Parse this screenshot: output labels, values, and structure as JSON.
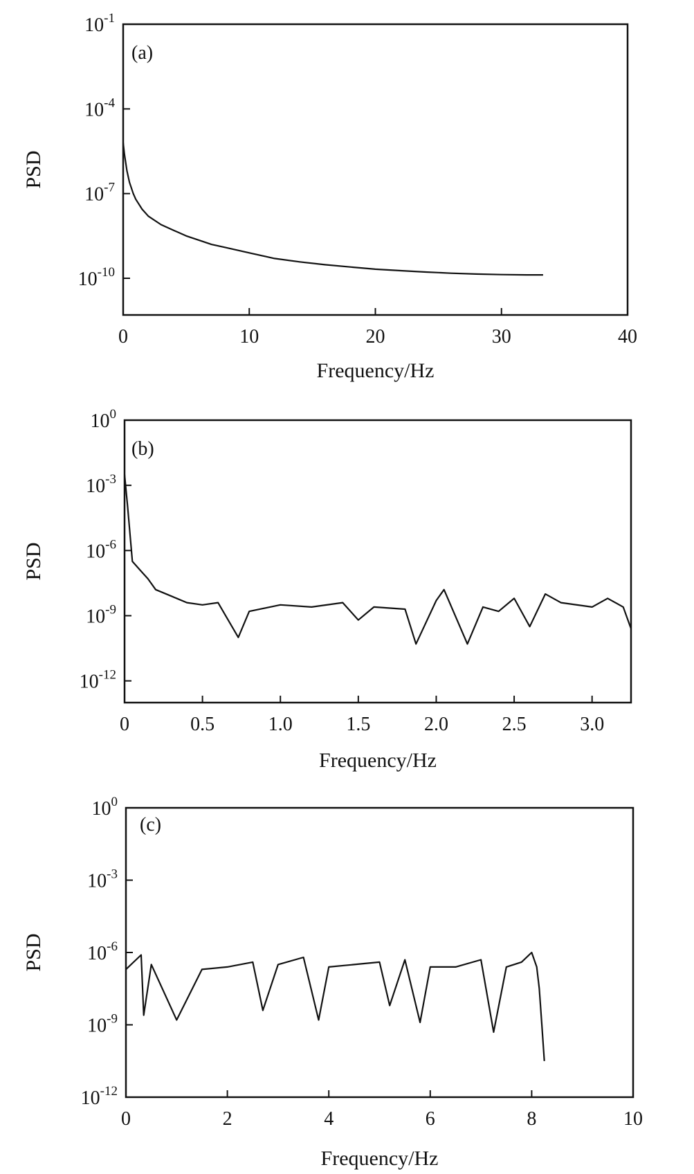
{
  "chart_data": [
    {
      "type": "line",
      "panel_label": "(a)",
      "xlabel": "Frequency/Hz",
      "ylabel": "PSD",
      "y_scale": "log",
      "xlim": [
        0,
        40
      ],
      "ylim_exp": [
        -11.3,
        -1
      ],
      "x_ticks": [
        0,
        10,
        20,
        30,
        40
      ],
      "x_tick_labels": [
        "0",
        "10",
        "20",
        "30",
        "40"
      ],
      "y_ticks_exp": [
        -10,
        -7,
        -4,
        -1
      ],
      "y_tick_labels": [
        {
          "base": "10",
          "exp": "-10"
        },
        {
          "base": "10",
          "exp": "-7"
        },
        {
          "base": "10",
          "exp": "-4"
        },
        {
          "base": "10",
          "exp": "-1"
        }
      ],
      "series": [
        {
          "x": [
            0,
            0.1,
            0.3,
            0.5,
            0.8,
            1,
            1.5,
            2,
            3,
            4,
            5,
            6,
            7,
            8,
            10,
            12,
            14,
            16,
            18,
            20,
            22,
            24,
            26,
            28,
            30,
            32,
            33.3
          ],
          "y_exp": [
            -5.2,
            -5.6,
            -6.2,
            -6.6,
            -7.0,
            -7.2,
            -7.55,
            -7.8,
            -8.1,
            -8.3,
            -8.5,
            -8.65,
            -8.8,
            -8.9,
            -9.1,
            -9.3,
            -9.42,
            -9.52,
            -9.6,
            -9.68,
            -9.73,
            -9.78,
            -9.82,
            -9.85,
            -9.87,
            -9.88,
            -9.88
          ]
        }
      ]
    },
    {
      "type": "line",
      "panel_label": "(b)",
      "xlabel": "Frequency/Hz",
      "ylabel": "PSD",
      "y_scale": "log",
      "xlim": [
        0,
        3.25
      ],
      "ylim_exp": [
        -13,
        0
      ],
      "x_ticks": [
        0,
        0.5,
        1.0,
        1.5,
        2.0,
        2.5,
        3.0
      ],
      "x_tick_labels": [
        "0",
        "0.5",
        "1.0",
        "1.5",
        "2.0",
        "2.5",
        "3.0"
      ],
      "y_ticks_exp": [
        -12,
        -9,
        -6,
        -3,
        0
      ],
      "y_tick_labels": [
        {
          "base": "10",
          "exp": "-12"
        },
        {
          "base": "10",
          "exp": "-9"
        },
        {
          "base": "10",
          "exp": "-6"
        },
        {
          "base": "10",
          "exp": "-3"
        },
        {
          "base": "10",
          "exp": "0"
        }
      ],
      "series": [
        {
          "x": [
            0,
            0.02,
            0.05,
            0.1,
            0.15,
            0.2,
            0.3,
            0.4,
            0.5,
            0.6,
            0.73,
            0.8,
            1.0,
            1.2,
            1.4,
            1.5,
            1.6,
            1.8,
            1.87,
            2.0,
            2.05,
            2.2,
            2.3,
            2.4,
            2.5,
            2.6,
            2.7,
            2.8,
            3.0,
            3.1,
            3.2,
            3.25
          ],
          "y_exp": [
            -2.5,
            -4.0,
            -6.5,
            -6.9,
            -7.3,
            -7.8,
            -8.1,
            -8.4,
            -8.5,
            -8.4,
            -10.0,
            -8.8,
            -8.5,
            -8.6,
            -8.4,
            -9.2,
            -8.6,
            -8.7,
            -10.3,
            -8.3,
            -7.8,
            -10.3,
            -8.6,
            -8.8,
            -8.2,
            -9.5,
            -8.0,
            -8.4,
            -8.6,
            -8.2,
            -8.6,
            -9.6
          ]
        }
      ]
    },
    {
      "type": "line",
      "panel_label": "(c)",
      "xlabel": "Frequency/Hz",
      "ylabel": "PSD",
      "y_scale": "log",
      "xlim": [
        0,
        10
      ],
      "ylim_exp": [
        -12,
        0
      ],
      "x_ticks": [
        0,
        2,
        4,
        6,
        8,
        10
      ],
      "x_tick_labels": [
        "0",
        "2",
        "4",
        "6",
        "8",
        "10"
      ],
      "y_ticks_exp": [
        -12,
        -9,
        -6,
        -3,
        0
      ],
      "y_tick_labels": [
        {
          "base": "10",
          "exp": "-12"
        },
        {
          "base": "10",
          "exp": "-9"
        },
        {
          "base": "10",
          "exp": "-6"
        },
        {
          "base": "10",
          "exp": "-3"
        },
        {
          "base": "10",
          "exp": "0"
        }
      ],
      "series": [
        {
          "x": [
            0,
            0.3,
            0.35,
            0.5,
            1.0,
            1.5,
            2.0,
            2.5,
            2.7,
            3.0,
            3.5,
            3.8,
            4.0,
            4.5,
            5.0,
            5.2,
            5.5,
            5.8,
            6.0,
            6.5,
            7.0,
            7.25,
            7.5,
            7.8,
            8.0,
            8.1,
            8.15,
            8.2,
            8.25
          ],
          "y_exp": [
            -6.7,
            -6.1,
            -8.6,
            -6.5,
            -8.8,
            -6.7,
            -6.6,
            -6.4,
            -8.4,
            -6.5,
            -6.2,
            -8.8,
            -6.6,
            -6.5,
            -6.4,
            -8.2,
            -6.3,
            -8.9,
            -6.6,
            -6.6,
            -6.3,
            -9.3,
            -6.6,
            -6.4,
            -6.0,
            -6.6,
            -7.5,
            -9.0,
            -10.5
          ]
        }
      ]
    }
  ]
}
